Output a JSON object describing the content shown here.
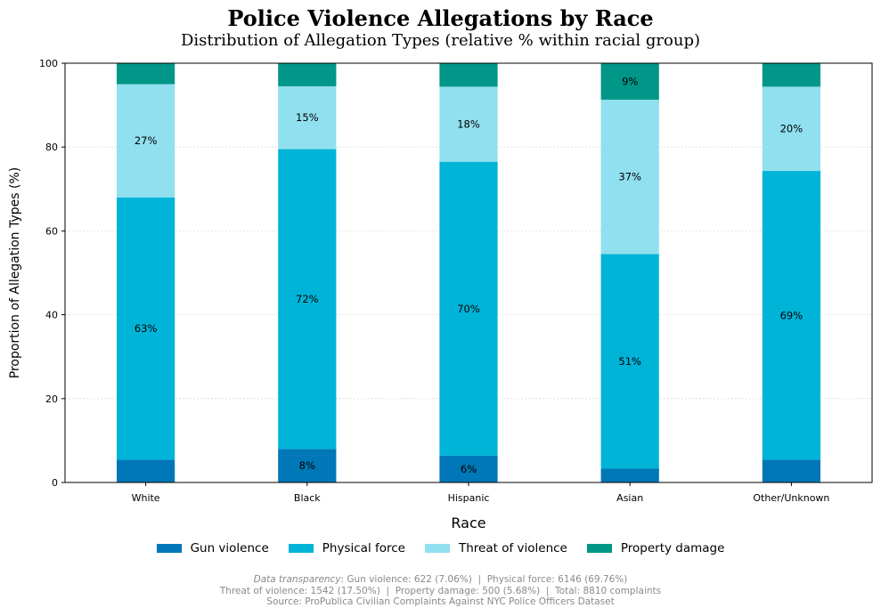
{
  "chart_data": {
    "type": "bar",
    "stacked": true,
    "title": "Police Violence Allegations by Race",
    "subtitle": "Distribution of Allegation Types (relative % within racial group)",
    "xlabel": "Race",
    "ylabel": "Proportion of Allegation Types (%)",
    "ylim": [
      0,
      100
    ],
    "yticks": [
      "0",
      "20",
      "40",
      "60",
      "80",
      "100"
    ],
    "grid": "horizontal, dotted",
    "legend_position": "bottom-center",
    "categories": [
      "White",
      "Black",
      "Hispanic",
      "Asian",
      "Other/Unknown"
    ],
    "series": [
      {
        "name": "Gun violence",
        "color": "#0077b6",
        "values": [
          5.4,
          8.0,
          6.4,
          3.3,
          5.4
        ],
        "labels": [
          "",
          "8%",
          "6%",
          "",
          ""
        ]
      },
      {
        "name": "Physical force",
        "color": "#00b4d8",
        "values": [
          62.6,
          71.5,
          70.1,
          51.2,
          68.9
        ],
        "labels": [
          "63%",
          "72%",
          "70%",
          "51%",
          "69%"
        ]
      },
      {
        "name": "Threat of violence",
        "color": "#90e0ef",
        "values": [
          27.0,
          15.0,
          17.9,
          36.8,
          20.1
        ],
        "labels": [
          "27%",
          "15%",
          "18%",
          "37%",
          "20%"
        ]
      },
      {
        "name": "Property damage",
        "color": "#009688",
        "values": [
          5.0,
          5.5,
          5.6,
          8.7,
          5.6
        ],
        "labels": [
          "",
          "",
          "",
          "9%",
          ""
        ]
      }
    ]
  },
  "footer": {
    "line1_italic": "Data transparency",
    "line1_rest": ": Gun violence: 622 (7.06%)  |  Physical force: 6146 (69.76%)",
    "line2": "Threat of violence: 1542 (17.50%)  |  Property damage: 500 (5.68%)  |  Total: 8810 complaints",
    "line3": "Source: ProPublica Civilian Complaints Against NYC Police Officers Dataset"
  }
}
